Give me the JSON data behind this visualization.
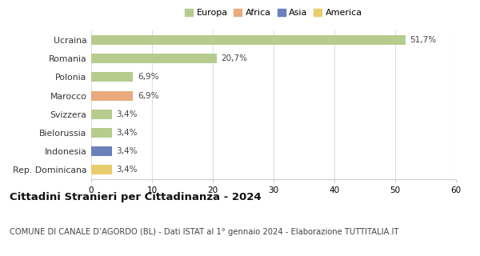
{
  "categories": [
    "Ucraina",
    "Romania",
    "Polonia",
    "Marocco",
    "Svizzera",
    "Bielorussia",
    "Indonesia",
    "Rep. Dominicana"
  ],
  "values": [
    51.7,
    20.7,
    6.9,
    6.9,
    3.4,
    3.4,
    3.4,
    3.4
  ],
  "labels": [
    "51,7%",
    "20,7%",
    "6,9%",
    "6,9%",
    "3,4%",
    "3,4%",
    "3,4%",
    "3,4%"
  ],
  "bar_colors": [
    "#b5cc8e",
    "#b5cc8e",
    "#b5cc8e",
    "#e8aa7e",
    "#b5cc8e",
    "#b5cc8e",
    "#6b7fba",
    "#e8cc6e"
  ],
  "legend_items": [
    {
      "label": "Europa",
      "color": "#b5cc8e"
    },
    {
      "label": "Africa",
      "color": "#e8aa7e"
    },
    {
      "label": "Asia",
      "color": "#6b7fba"
    },
    {
      "label": "America",
      "color": "#e8cc6e"
    }
  ],
  "xlim": [
    0,
    60
  ],
  "xticks": [
    0,
    10,
    20,
    30,
    40,
    50,
    60
  ],
  "title": "Cittadini Stranieri per Cittadinanza - 2024",
  "subtitle": "COMUNE DI CANALE D’AGORDO (BL) - Dati ISTAT al 1° gennaio 2024 - Elaborazione TUTTITALIA.IT",
  "title_fontsize": 9.5,
  "subtitle_fontsize": 7.2,
  "background_color": "#ffffff",
  "grid_color": "#e0e0e0",
  "bar_height": 0.52
}
